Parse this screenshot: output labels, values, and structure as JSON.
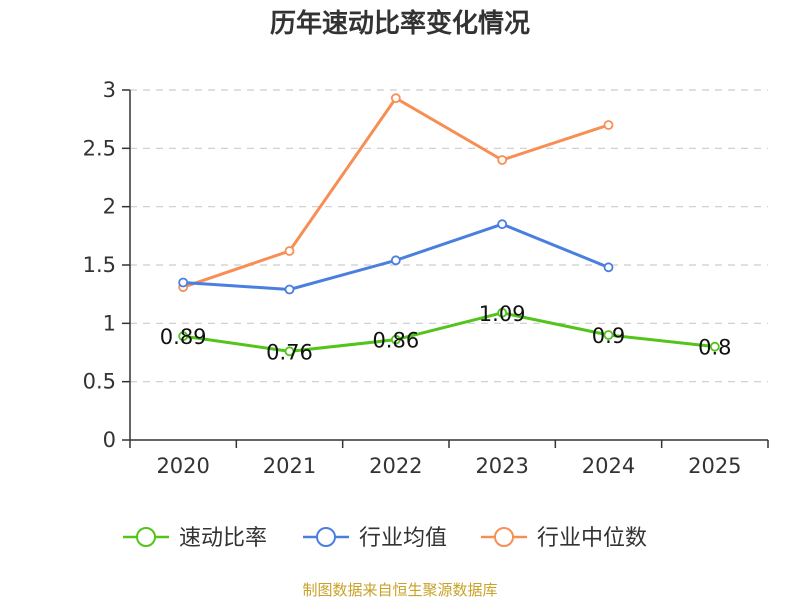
{
  "chart_data": {
    "type": "line",
    "title": "历年速动比率变化情况",
    "categories": [
      "2020",
      "2021",
      "2022",
      "2023",
      "2024",
      "2025"
    ],
    "ylim": [
      0,
      3
    ],
    "yticks": [
      "0",
      "0.5",
      "1",
      "1.5",
      "2",
      "2.5",
      "3"
    ],
    "grid": true,
    "legend_position": "bottom",
    "series": [
      {
        "name": "速动比率",
        "color": "#52c41a",
        "values": [
          0.89,
          0.76,
          0.86,
          1.09,
          0.9,
          0.8
        ],
        "labels": [
          "0.89",
          "0.76",
          "0.86",
          "1.09",
          "0.9",
          "0.8"
        ]
      },
      {
        "name": "行业均值",
        "color": "#4a7fe0",
        "values": [
          1.35,
          1.29,
          1.54,
          1.85,
          1.48,
          null
        ]
      },
      {
        "name": "行业中位数",
        "color": "#f78f55",
        "values": [
          1.31,
          1.62,
          2.93,
          2.4,
          2.7,
          null
        ]
      }
    ]
  },
  "source": "制图数据来自恒生聚源数据库"
}
